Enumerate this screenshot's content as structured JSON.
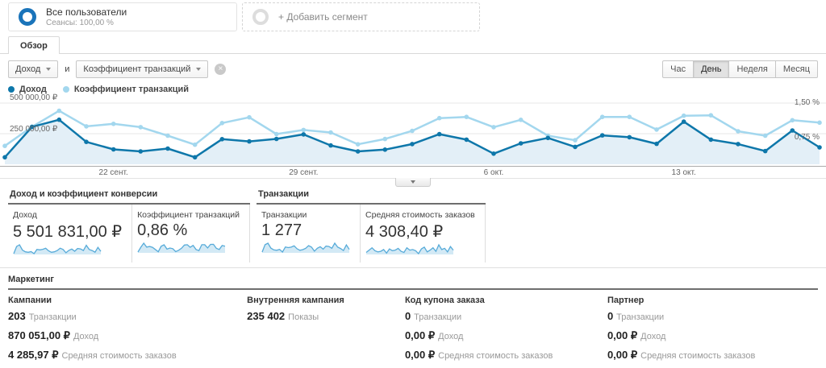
{
  "colors": {
    "series_revenue": "#0e77aa",
    "series_revenue_fill": "#e3eff7",
    "series_coefficient": "#a3d7ee",
    "sparkline_line": "#57abd9",
    "sparkline_fill": "#d3e9f5",
    "segment_donut": "#1a74ba"
  },
  "segments": {
    "all_users": {
      "title": "Все пользователи",
      "subtitle": "Сеансы: 100,00 %"
    },
    "add_segment_label": "+ Добавить сегмент"
  },
  "tabs": {
    "overview": "Обзор"
  },
  "controls": {
    "metric1_label": "Доход",
    "conjunction": "и",
    "metric2_label": "Коэффициент транзакций",
    "clear_icon": "×",
    "granularity": [
      "Час",
      "День",
      "Неделя",
      "Месяц"
    ],
    "granularity_active": "День"
  },
  "legend": [
    {
      "label": "Доход"
    },
    {
      "label": "Коэффициент транзакций"
    }
  ],
  "chart_data": {
    "type": "line",
    "tick_labels": [
      {
        "index": 4,
        "label": "22 сент."
      },
      {
        "index": 11,
        "label": "29 сент."
      },
      {
        "index": 18,
        "label": "6 окт."
      },
      {
        "index": 25,
        "label": "13 окт."
      }
    ],
    "left_axis": {
      "max": 500000,
      "ticks": [
        {
          "value": 250000,
          "label": "250 000,00 ₽"
        },
        {
          "value": 500000,
          "label": "500 000,00 ₽"
        }
      ]
    },
    "right_axis": {
      "max": 1.5,
      "ticks": [
        {
          "value": 0.75,
          "label": "0,75 %"
        },
        {
          "value": 1.5,
          "label": "1,50 %"
        }
      ]
    },
    "series": [
      {
        "name": "Доход",
        "axis": "left",
        "color": "#0e77aa",
        "fill": "#e3eff7",
        "values": [
          57000,
          305000,
          364000,
          183000,
          122000,
          105000,
          128000,
          57000,
          205000,
          187000,
          207000,
          244000,
          154000,
          105000,
          120000,
          165000,
          246000,
          201000,
          87000,
          171000,
          215000,
          142000,
          236000,
          221000,
          167000,
          348000,
          201000,
          165000,
          108000,
          276000,
          138000
        ]
      },
      {
        "name": "Коэффициент транзакций",
        "axis": "right",
        "color": "#a3d7ee",
        "values": [
          0.45,
          0.92,
          1.31,
          0.93,
          0.99,
          0.91,
          0.7,
          0.48,
          1.01,
          1.15,
          0.74,
          0.84,
          0.78,
          0.49,
          0.62,
          0.82,
          1.13,
          1.16,
          0.91,
          1.09,
          0.7,
          0.59,
          1.16,
          1.16,
          0.85,
          1.19,
          1.2,
          0.81,
          0.7,
          1.08,
          1.02
        ]
      }
    ]
  },
  "scorecards": {
    "groups": [
      {
        "title": "Доход и коэффициент конверсии",
        "cards": [
          {
            "label": "Доход",
            "value": "5 501 831,00 ₽"
          },
          {
            "label": "Коэффициент транзакций",
            "value": "0,86 %"
          }
        ]
      },
      {
        "title": "Транзакции",
        "cards": [
          {
            "label": "Транзакции",
            "value": "1 277"
          },
          {
            "label": "Средняя стоимость заказов",
            "value": "4 308,40 ₽"
          }
        ]
      }
    ],
    "sparks": {
      "rev": [
        57,
        305,
        364,
        183,
        122,
        105,
        128,
        57,
        205,
        187,
        207,
        244,
        154,
        105,
        120,
        165,
        246,
        201,
        87,
        171,
        215,
        142,
        236,
        221,
        167,
        348,
        201,
        165,
        108,
        276,
        138
      ],
      "coeff": [
        0.45,
        0.92,
        1.31,
        0.93,
        0.99,
        0.91,
        0.7,
        0.48,
        1.01,
        1.15,
        0.74,
        0.84,
        0.78,
        0.49,
        0.62,
        0.82,
        1.13,
        1.16,
        0.91,
        1.09,
        0.7,
        0.59,
        1.16,
        1.16,
        0.85,
        1.19,
        1.2,
        0.81,
        0.7,
        1.08,
        1.02
      ],
      "trans": [
        12,
        45,
        52,
        30,
        22,
        20,
        24,
        12,
        35,
        32,
        34,
        40,
        27,
        20,
        23,
        29,
        41,
        34,
        16,
        29,
        36,
        25,
        39,
        37,
        29,
        52,
        34,
        28,
        19,
        44,
        24
      ],
      "aov": [
        3.8,
        4.2,
        4.6,
        4.1,
        3.9,
        4.0,
        4.3,
        3.7,
        4.4,
        4.1,
        4.2,
        4.5,
        4.0,
        3.8,
        4.6,
        4.2,
        4.3,
        4.1,
        3.6,
        4.4,
        4.7,
        3.9,
        4.2,
        4.6,
        4.0,
        5.1,
        4.3,
        4.5,
        3.9,
        4.8,
        4.2
      ]
    }
  },
  "marketing": {
    "title": "Маркетинг",
    "columns": [
      {
        "header": "Кампании",
        "rows": [
          {
            "value": "203",
            "label": "Транзакции"
          },
          {
            "value": "870 051,00 ₽",
            "label": "Доход"
          },
          {
            "value": "4 285,97 ₽",
            "label": "Средняя стоимость заказов"
          }
        ]
      },
      {
        "header": "Внутренняя кампания",
        "rows": [
          {
            "value": "235 402",
            "label": "Показы"
          }
        ]
      },
      {
        "header": "Код купона заказа",
        "rows": [
          {
            "value": "0",
            "label": "Транзакции"
          },
          {
            "value": "0,00 ₽",
            "label": "Доход"
          },
          {
            "value": "0,00 ₽",
            "label": "Средняя стоимость заказов"
          }
        ]
      },
      {
        "header": "Партнер",
        "rows": [
          {
            "value": "0",
            "label": "Транзакции"
          },
          {
            "value": "0,00 ₽",
            "label": "Доход"
          },
          {
            "value": "0,00 ₽",
            "label": "Средняя стоимость заказов"
          }
        ]
      }
    ]
  }
}
